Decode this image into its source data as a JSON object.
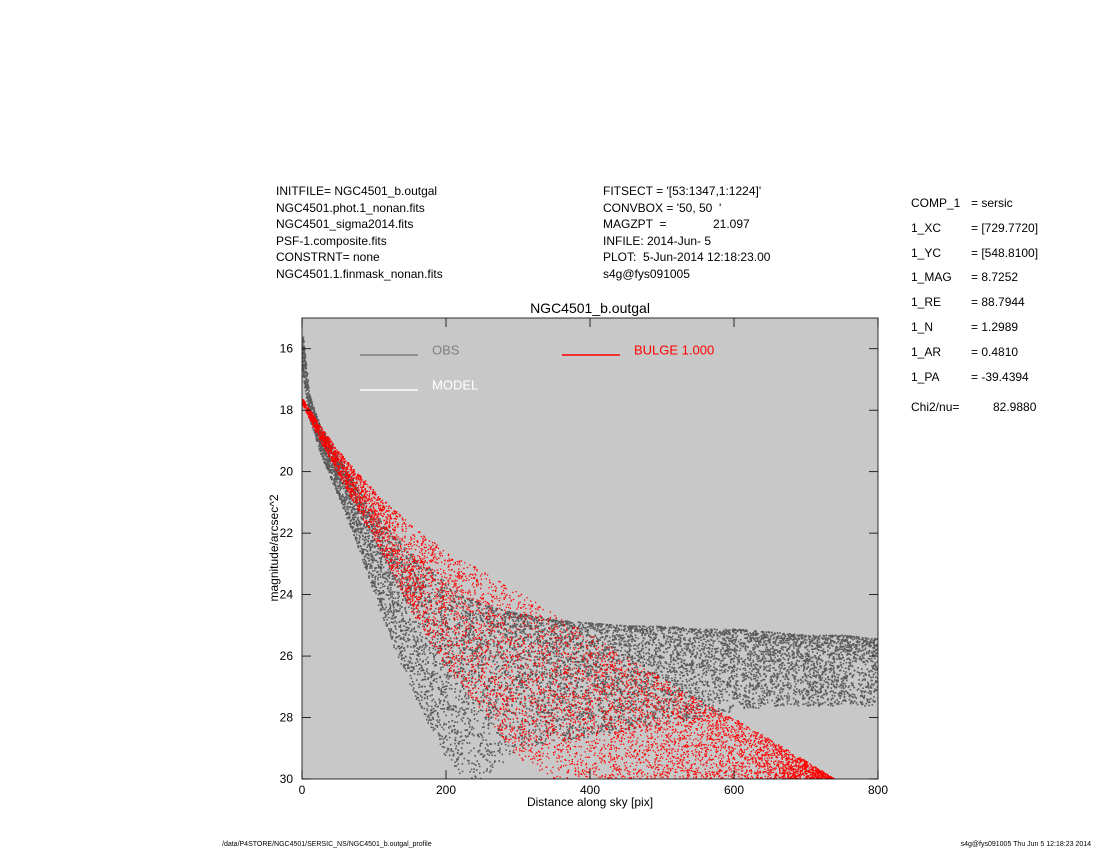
{
  "header_left": [
    "INITFILE= NGC4501_b.outgal",
    "NGC4501.phot.1_nonan.fits",
    "NGC4501_sigma2014.fits",
    "PSF-1.composite.fits",
    "CONSTRNT= none",
    "NGC4501.1.finmask_nonan.fits"
  ],
  "header_mid": {
    "fitsect": "FITSECT = '[53:1347,1:1224]'",
    "convbox": "CONVBOX = '50, 50  '",
    "magzpt_key": "MAGZPT  =",
    "magzpt_val": "21.097",
    "infile": "INFILE: 2014-Jun- 5",
    "plot": "PLOT:  5-Jun-2014 12:18:23.00",
    "user": "s4g@fys091005"
  },
  "params": [
    {
      "key": "COMP_1",
      "val": "= sersic"
    },
    {
      "key": "1_XC",
      "val": "= [729.7720]"
    },
    {
      "key": "1_YC",
      "val": "= [548.8100]"
    },
    {
      "key": "1_MAG",
      "val": "= 8.7252"
    },
    {
      "key": "1_RE",
      "val": "= 88.7944"
    },
    {
      "key": "1_N",
      "val": "= 1.2989"
    },
    {
      "key": "1_AR",
      "val": "= 0.4810"
    },
    {
      "key": "1_PA",
      "val": "= -39.4394"
    }
  ],
  "chi": {
    "key": "Chi2/nu=",
    "val": "82.9880"
  },
  "footer_left": "/data/P4STORE/NGC4501/SERSIC_NS/NGC4501_b.outgal_profile",
  "footer_right": "s4g@fys091005  Thu Jun  5 12:18:23 2014",
  "colors": {
    "plot_bg": "#c8c8c8",
    "obs": "#5a5a5a",
    "obs_legend": "#808080",
    "model": "#ffffff",
    "bulge": "#ff0000"
  },
  "chart_data": {
    "type": "scatter",
    "title": "NGC4501_b.outgal",
    "xlabel": "Distance along sky [pix]",
    "ylabel": "magnitude/arcsec^2",
    "xlim": [
      0,
      800
    ],
    "ylim": [
      30,
      15
    ],
    "y_inverted": true,
    "xticks": [
      0,
      200,
      400,
      600,
      800
    ],
    "yticks": [
      16,
      18,
      20,
      22,
      24,
      26,
      28,
      30
    ],
    "legend": [
      {
        "name": "OBS",
        "color": "#808080"
      },
      {
        "name": "MODEL",
        "color": "#ffffff"
      },
      {
        "name": "BULGE  1.000",
        "color": "#ff0000"
      }
    ],
    "series": [
      {
        "name": "OBS",
        "x": [
          0,
          10,
          25,
          50,
          75,
          100,
          125,
          150,
          175,
          200,
          225,
          250,
          300,
          350,
          400,
          450,
          500,
          550,
          600,
          650,
          700,
          750,
          800
        ],
        "y_min": [
          15.4,
          17.5,
          18.5,
          19.5,
          20.4,
          21.3,
          22.0,
          22.6,
          23.1,
          23.6,
          24.0,
          24.3,
          24.6,
          24.8,
          24.9,
          25.0,
          25.0,
          25.1,
          25.1,
          25.2,
          25.3,
          25.3,
          25.4
        ],
        "y_max": [
          16.8,
          18.3,
          19.4,
          20.8,
          22.3,
          24.0,
          25.6,
          27.0,
          28.2,
          29.3,
          30.0,
          30.0,
          29.0,
          28.8,
          28.6,
          28.4,
          28.2,
          28.0,
          27.8,
          27.6,
          27.6,
          27.6,
          27.6
        ]
      },
      {
        "name": "BULGE  1.000",
        "x": [
          0,
          25,
          50,
          100,
          150,
          200,
          250,
          300,
          350,
          400,
          450,
          500,
          550,
          600,
          650,
          700,
          740
        ],
        "y_min": [
          17.6,
          18.5,
          19.3,
          20.6,
          21.7,
          22.6,
          23.2,
          23.9,
          24.6,
          25.3,
          26.0,
          26.7,
          27.4,
          28.0,
          28.7,
          29.4,
          30.0
        ],
        "y_max": [
          17.8,
          19.0,
          20.1,
          22.2,
          24.5,
          26.4,
          27.8,
          29.3,
          30.0,
          30.0,
          30.0,
          30.0,
          30.0,
          30.0,
          30.0,
          30.0,
          30.0
        ]
      }
    ]
  }
}
